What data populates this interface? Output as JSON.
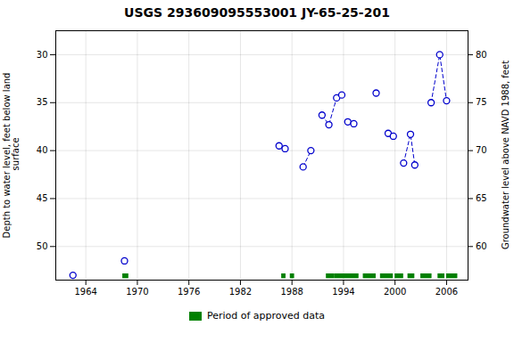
{
  "chart_data": {
    "type": "scatter",
    "title": "USGS 293609095553001 JY-65-25-201",
    "ylabel": "Depth to water level, feet below land\n surface",
    "y2label": "Groundwater level above NAVD 1988, feet",
    "xlim": [
      1960.5,
      2008.5
    ],
    "xticks": [
      1964,
      1970,
      1976,
      1982,
      1988,
      1994,
      2000,
      2006
    ],
    "ylim": [
      53.5,
      27.5
    ],
    "yticks": [
      30,
      35,
      40,
      45,
      50
    ],
    "y2lim": [
      56.5,
      82.5
    ],
    "y2ticks": [
      60,
      65,
      70,
      75,
      80
    ],
    "grid": true,
    "legend": "bottom",
    "series": [
      {
        "type": "line",
        "line_style": "dashed",
        "color": "#0000CC",
        "x": [
          1986.5,
          1987.2,
          null,
          1989.3,
          1990.2,
          null,
          1991.5,
          1992.3,
          1993.2,
          1993.8,
          null,
          1994.5,
          1995.2,
          null,
          1999.2,
          1999.8,
          null,
          2001.0,
          2001.8,
          2002.3,
          null,
          2004.2,
          2005.2,
          2006.0
        ],
        "values": [
          39.5,
          39.8,
          null,
          41.7,
          40.0,
          null,
          36.3,
          37.3,
          34.5,
          34.2,
          null,
          37.0,
          37.2,
          null,
          38.2,
          38.5,
          null,
          41.3,
          38.3,
          41.5,
          null,
          35.0,
          30.0,
          34.8
        ]
      },
      {
        "type": "scatter",
        "marker": "circle",
        "color": "#0000CC",
        "x": [
          1962.5,
          1968.5,
          1986.5,
          1987.2,
          1989.3,
          1990.2,
          1991.5,
          1992.3,
          1993.2,
          1993.8,
          1994.5,
          1995.2,
          1997.8,
          1999.2,
          1999.8,
          2001.0,
          2001.8,
          2002.3,
          2004.2,
          2005.2,
          2006.0
        ],
        "values": [
          53.0,
          51.5,
          39.5,
          39.8,
          41.7,
          40.0,
          36.3,
          37.3,
          34.5,
          34.2,
          37.0,
          37.2,
          34.0,
          38.2,
          38.5,
          41.3,
          38.3,
          41.5,
          35.0,
          30.0,
          34.8
        ]
      },
      {
        "name": "Period of approved data",
        "type": "bar",
        "orientation": "horizontal",
        "color": "#008000",
        "ranges": [
          [
            1968.3,
            1969.0
          ],
          [
            1986.8,
            1987.3
          ],
          [
            1987.8,
            1988.3
          ],
          [
            1992.0,
            1993.0
          ],
          [
            1993.0,
            1995.8
          ],
          [
            1996.3,
            1997.8
          ],
          [
            1998.3,
            1999.8
          ],
          [
            2000.0,
            2001.0
          ],
          [
            2001.5,
            2002.3
          ],
          [
            2003.0,
            2004.3
          ],
          [
            2005.0,
            2005.8
          ],
          [
            2006.0,
            2007.3
          ]
        ],
        "y": 53.1,
        "height": 0.5
      }
    ]
  }
}
